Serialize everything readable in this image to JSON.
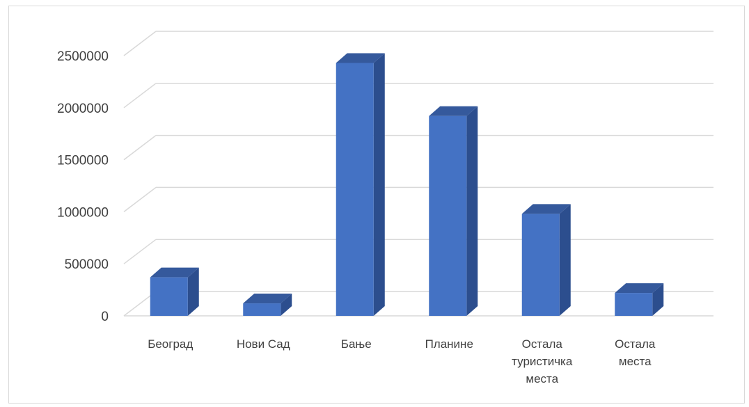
{
  "chart_data": {
    "type": "bar",
    "title": "",
    "categories": [
      [
        "Београд"
      ],
      [
        "Нови Сад"
      ],
      [
        "Бање"
      ],
      [
        "Планине"
      ],
      [
        "Остала",
        "туристичка",
        "места"
      ],
      [
        "Остала",
        "места"
      ]
    ],
    "values": [
      370000,
      120000,
      2430000,
      1920000,
      980000,
      220000
    ],
    "yticks": [
      "0",
      "500000",
      "1000000",
      "1500000",
      "2000000",
      "2500000"
    ],
    "ylim": [
      0,
      2500000
    ],
    "xlabel": "",
    "ylabel": "",
    "grid": true,
    "legend": "none",
    "style": "3d-clustered-column",
    "colors": {
      "bar_front": "#4472c4",
      "bar_side": "#2c4e8e",
      "bar_top": "#35599c",
      "grid": "#d9d9d9"
    }
  }
}
